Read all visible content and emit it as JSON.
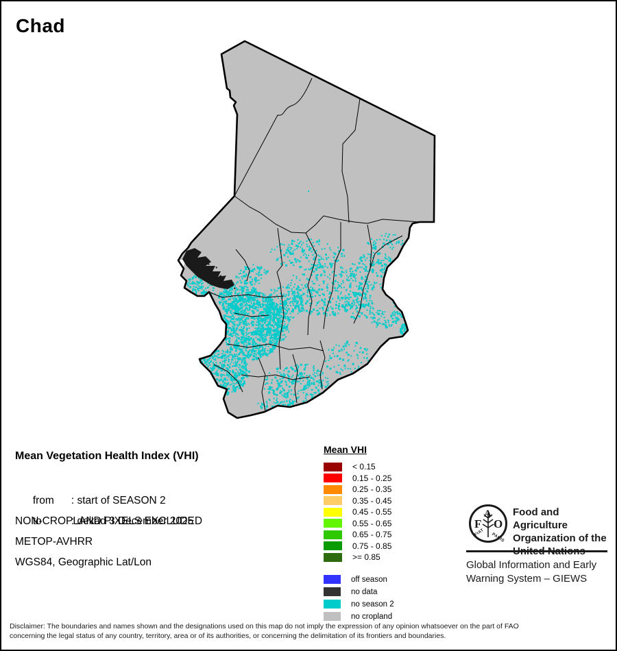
{
  "title": "Chad",
  "info": {
    "heading": "Mean Vegetation Health Index (VHI)",
    "rows": [
      {
        "label": "from",
        "value": ": start of SEASON 2"
      },
      {
        "label": "to",
        "value": ": dekad 3 December 2025"
      }
    ],
    "lines": [
      "NON-CROPLAND PIXELS EXCLUDED",
      "METOP-AVHRR",
      "WGS84, Geographic Lat/Lon"
    ]
  },
  "legend": {
    "title": "Mean VHI",
    "classes": [
      {
        "label": "< 0.15",
        "color": "#990000"
      },
      {
        "label": "0.15 - 0.25",
        "color": "#FF0000"
      },
      {
        "label": "0.25 - 0.35",
        "color": "#FF8A00"
      },
      {
        "label": "0.35 - 0.45",
        "color": "#FFCC66"
      },
      {
        "label": "0.45 - 0.55",
        "color": "#FFFF00"
      },
      {
        "label": "0.55 - 0.65",
        "color": "#63F600"
      },
      {
        "label": "0.65 - 0.75",
        "color": "#2FC900"
      },
      {
        "label": "0.75 - 0.85",
        "color": "#0A9B00"
      },
      {
        "label": ">= 0.85",
        "color": "#2E6B0E"
      }
    ],
    "extra": [
      {
        "label": "off season",
        "color": "#3333FF"
      },
      {
        "label": "no data",
        "color": "#333333"
      },
      {
        "label": "no season 2",
        "color": "#00CCCC"
      },
      {
        "label": "no cropland",
        "color": "#C0C0C0"
      }
    ]
  },
  "map": {
    "country": "Chad",
    "cropland_mask_color": "#C0C0C0",
    "no_data_color": "#1A1A1A",
    "no_season2_color": "#00CCCC",
    "border_color": "#000000"
  },
  "org": {
    "logo": "fao-logo",
    "logo_letters": [
      "F",
      "A",
      "O"
    ],
    "logo_motto_left": "FIAT",
    "logo_motto_right": "PANIS",
    "name_lines": [
      "Food and Agriculture",
      "Organization of the",
      "United Nations"
    ],
    "system_lines": [
      "Global Information and Early",
      "Warning System – GIEWS"
    ]
  },
  "disclaimer": [
    "Disclaimer: The boundaries and names shown and the designations used on this map do not imply the expression of any opinion whatsoever on the part of FAO",
    "concerning the legal status of any country, territory, area or of its authorities, or concerning the delimitation of its frontiers and boundaries."
  ]
}
